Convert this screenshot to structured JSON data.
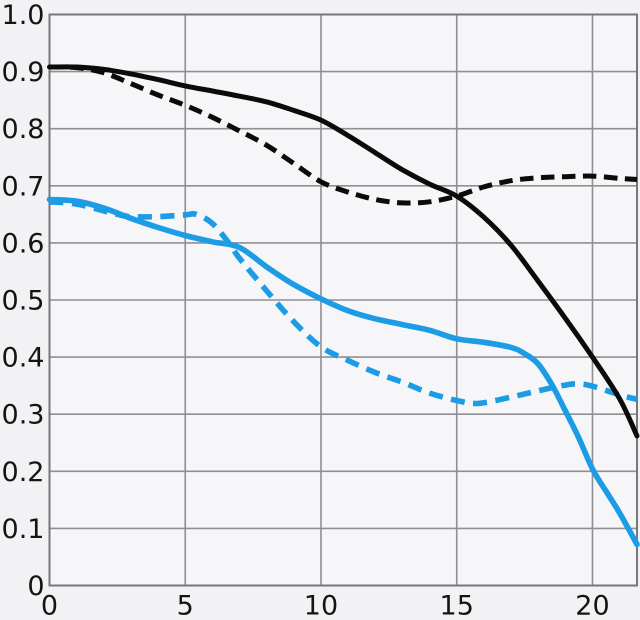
{
  "chart_data": {
    "type": "line",
    "grid": true,
    "legend": "none",
    "axes": {
      "x": {
        "min": 0,
        "max": 21.64,
        "ticks": [
          {
            "label": "0",
            "value": 0
          },
          {
            "label": "5",
            "value": 5
          },
          {
            "label": "10",
            "value": 10
          },
          {
            "label": "15",
            "value": 15
          },
          {
            "label": "20",
            "value": 20
          }
        ]
      },
      "y": {
        "min": 0,
        "max": 1.0,
        "ticks": [
          {
            "label": "1.0",
            "value": 1.0
          },
          {
            "label": "0.9",
            "value": 0.9
          },
          {
            "label": "0.8",
            "value": 0.8
          },
          {
            "label": "0.7",
            "value": 0.7
          },
          {
            "label": "0.6",
            "value": 0.6
          },
          {
            "label": "0.5",
            "value": 0.5
          },
          {
            "label": "0.4",
            "value": 0.4
          },
          {
            "label": "0.3",
            "value": 0.3
          },
          {
            "label": "0.2",
            "value": 0.2
          },
          {
            "label": "0.1",
            "value": 0.1
          },
          {
            "label": "0",
            "value": 0
          }
        ]
      }
    },
    "colors": {
      "black": "#0b0b0b",
      "blue": "#1b9ce5",
      "grid": "#8f8f92",
      "border": "#77777a",
      "plot_bg": "#f6f6f8",
      "page_bg": "#f2f1f4",
      "label": "#141414"
    },
    "series": [
      {
        "name": "blue-dashed",
        "color_key": "blue",
        "style": "dashed",
        "dash_pattern": "14 8.5",
        "stroke_width": 5.6,
        "points": [
          [
            0,
            0.672
          ],
          [
            1,
            0.668
          ],
          [
            2,
            0.656
          ],
          [
            2.5,
            0.65
          ],
          [
            3,
            0.646
          ],
          [
            4,
            0.646
          ],
          [
            5,
            0.649
          ],
          [
            5.4,
            0.65
          ],
          [
            6,
            0.634
          ],
          [
            6.65,
            0.597
          ],
          [
            7,
            0.573
          ],
          [
            8,
            0.516
          ],
          [
            9,
            0.462
          ],
          [
            10,
            0.418
          ],
          [
            11,
            0.394
          ],
          [
            12,
            0.373
          ],
          [
            13,
            0.356
          ],
          [
            14,
            0.337
          ],
          [
            15,
            0.324
          ],
          [
            15.8,
            0.319
          ],
          [
            17,
            0.33
          ],
          [
            18,
            0.341
          ],
          [
            19,
            0.351
          ],
          [
            19.5,
            0.353
          ],
          [
            20,
            0.349
          ],
          [
            21,
            0.334
          ],
          [
            21.64,
            0.326
          ]
        ]
      },
      {
        "name": "blue-solid",
        "color_key": "blue",
        "style": "solid",
        "stroke_width": 5.6,
        "points": [
          [
            0,
            0.676
          ],
          [
            1,
            0.673
          ],
          [
            2,
            0.661
          ],
          [
            3,
            0.643
          ],
          [
            4,
            0.627
          ],
          [
            5,
            0.613
          ],
          [
            6,
            0.602
          ],
          [
            7,
            0.592
          ],
          [
            8,
            0.558
          ],
          [
            9,
            0.527
          ],
          [
            10,
            0.502
          ],
          [
            11,
            0.481
          ],
          [
            12,
            0.467
          ],
          [
            13,
            0.457
          ],
          [
            14,
            0.447
          ],
          [
            15,
            0.432
          ],
          [
            16,
            0.426
          ],
          [
            17,
            0.417
          ],
          [
            17.5,
            0.406
          ],
          [
            18,
            0.388
          ],
          [
            18.5,
            0.352
          ],
          [
            19,
            0.306
          ],
          [
            19.5,
            0.258
          ],
          [
            20,
            0.204
          ],
          [
            20.5,
            0.165
          ],
          [
            21,
            0.127
          ],
          [
            21.64,
            0.072
          ]
        ]
      },
      {
        "name": "black-dashed",
        "color_key": "black",
        "style": "dashed",
        "dash_pattern": "13.5 7.5",
        "stroke_width": 5,
        "points": [
          [
            0,
            0.908
          ],
          [
            1,
            0.907
          ],
          [
            2,
            0.898
          ],
          [
            3,
            0.879
          ],
          [
            4,
            0.859
          ],
          [
            5,
            0.841
          ],
          [
            6,
            0.82
          ],
          [
            7,
            0.796
          ],
          [
            8,
            0.771
          ],
          [
            9,
            0.739
          ],
          [
            10,
            0.707
          ],
          [
            11,
            0.689
          ],
          [
            12,
            0.676
          ],
          [
            13,
            0.67
          ],
          [
            14,
            0.672
          ],
          [
            15,
            0.682
          ],
          [
            16,
            0.698
          ],
          [
            17,
            0.709
          ],
          [
            18,
            0.714
          ],
          [
            19,
            0.716
          ],
          [
            20,
            0.717
          ],
          [
            21,
            0.713
          ],
          [
            21.64,
            0.711
          ]
        ]
      },
      {
        "name": "black-solid",
        "color_key": "black",
        "style": "solid",
        "stroke_width": 5,
        "points": [
          [
            0,
            0.908
          ],
          [
            1,
            0.908
          ],
          [
            2,
            0.904
          ],
          [
            3,
            0.896
          ],
          [
            4,
            0.886
          ],
          [
            5,
            0.875
          ],
          [
            6,
            0.866
          ],
          [
            7,
            0.857
          ],
          [
            8,
            0.847
          ],
          [
            9,
            0.832
          ],
          [
            10,
            0.815
          ],
          [
            11,
            0.788
          ],
          [
            12,
            0.758
          ],
          [
            13,
            0.728
          ],
          [
            14,
            0.703
          ],
          [
            15,
            0.682
          ],
          [
            16,
            0.645
          ],
          [
            17,
            0.596
          ],
          [
            18,
            0.533
          ],
          [
            19,
            0.468
          ],
          [
            20,
            0.4
          ],
          [
            21,
            0.327
          ],
          [
            21.64,
            0.262
          ]
        ]
      }
    ]
  }
}
